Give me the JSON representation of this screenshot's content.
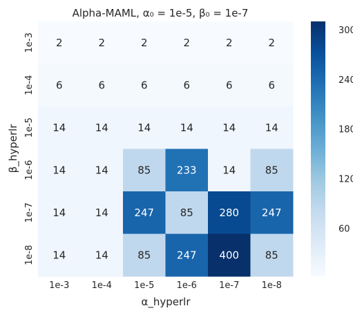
{
  "chart_data": {
    "type": "heatmap",
    "title": "Alpha-MAML, α₀ = 1e-5, β₀ = 1e-7",
    "xlabel": "α_hyperlr",
    "ylabel": "β_hyperlr",
    "x_categories": [
      "1e-3",
      "1e-4",
      "1e-5",
      "1e-6",
      "1e-7",
      "1e-8"
    ],
    "y_categories": [
      "1e-3",
      "1e-4",
      "1e-5",
      "1e-6",
      "1e-7",
      "1e-8"
    ],
    "values": [
      [
        2,
        2,
        2,
        2,
        2,
        2
      ],
      [
        6,
        6,
        6,
        6,
        6,
        6
      ],
      [
        14,
        14,
        14,
        14,
        14,
        14
      ],
      [
        14,
        14,
        85,
        233,
        14,
        85
      ],
      [
        14,
        14,
        247,
        85,
        280,
        247
      ],
      [
        14,
        14,
        85,
        247,
        400,
        85
      ]
    ],
    "colormap": "Blues",
    "colorbar": {
      "vmin": 2,
      "vmax": 310,
      "ticks": [
        60,
        120,
        180,
        240,
        300
      ]
    },
    "grid": false
  }
}
